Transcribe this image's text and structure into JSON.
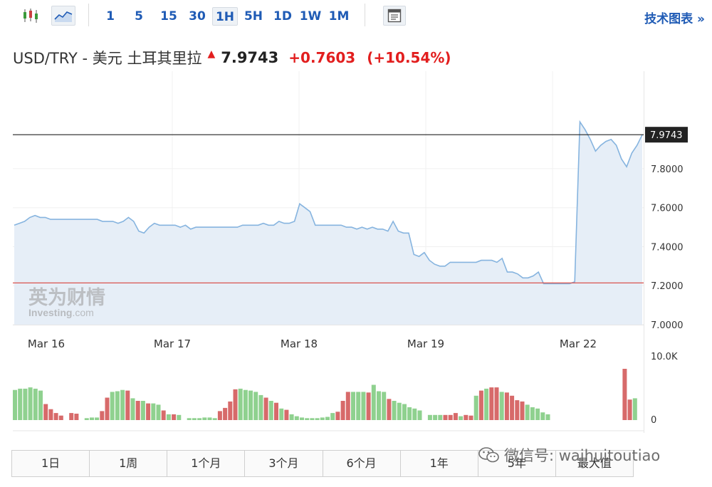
{
  "toolbar": {
    "candle_icon": "candlestick-icon",
    "line_icon": "line-chart-icon",
    "intervals": [
      "1",
      "5",
      "15",
      "30",
      "1H",
      "5H",
      "1D",
      "1W",
      "1M"
    ],
    "active_interval": "1H",
    "settings_icon": "chart-settings-icon",
    "tech_chart_label": "技术图表 »"
  },
  "header": {
    "name": "USD/TRY - 美元 土耳其里拉",
    "price": "7.9743",
    "change": "+0.7603",
    "change_pct": "(+10.54%)"
  },
  "watermark": {
    "cn": "英为财情",
    "en_a": "Investing",
    "en_b": ".com"
  },
  "colors": {
    "up_volume": "#8fd18f",
    "down_volume": "#d76a6a",
    "line": "#86b4df",
    "area": "#e6eef7",
    "ref_line": "#d9534f",
    "last_line": "#222222"
  },
  "chart_data": {
    "type": "area",
    "y_axis": {
      "ylim": [
        7.0,
        8.3
      ],
      "ticks": [
        "7.0000",
        "7.2000",
        "7.4000",
        "7.6000",
        "7.8000"
      ]
    },
    "x_labels": [
      "Mar 16",
      "Mar 17",
      "Mar 18",
      "Mar 19",
      "Mar 22"
    ],
    "last_value_label": "7.9743",
    "last_value": 7.9743,
    "reference_value": 7.214,
    "series": [
      {
        "values": [
          7.51,
          7.52,
          7.53,
          7.55,
          7.56,
          7.55,
          7.55,
          7.54,
          7.54,
          7.54,
          7.54,
          7.54,
          7.54,
          7.54,
          7.54,
          7.54,
          7.54,
          7.53,
          7.53,
          7.53,
          7.52,
          7.53,
          7.55,
          7.53,
          7.48,
          7.47,
          7.5,
          7.52,
          7.51,
          7.51,
          7.51,
          7.51,
          7.5,
          7.51,
          7.49,
          7.5,
          7.5,
          7.5,
          7.5,
          7.5,
          7.5,
          7.5,
          7.5,
          7.5,
          7.51,
          7.51,
          7.51,
          7.51,
          7.52,
          7.51,
          7.51,
          7.53,
          7.52,
          7.52,
          7.53,
          7.62,
          7.6,
          7.58,
          7.51,
          7.51,
          7.51,
          7.51,
          7.51,
          7.51,
          7.5,
          7.5,
          7.49,
          7.5,
          7.49,
          7.5,
          7.49,
          7.49,
          7.48,
          7.53,
          7.48,
          7.47,
          7.47,
          7.36,
          7.35,
          7.37,
          7.33,
          7.31,
          7.3,
          7.3,
          7.32,
          7.32,
          7.32,
          7.32,
          7.32,
          7.32,
          7.33,
          7.33,
          7.33,
          7.32,
          7.34,
          7.27,
          7.27,
          7.26,
          7.24,
          7.24,
          7.25,
          7.27,
          7.21,
          7.21,
          7.21,
          7.21,
          7.21,
          7.21,
          7.22,
          8.04,
          8.0,
          7.95,
          7.89,
          7.92,
          7.94,
          7.95,
          7.92,
          7.85,
          7.81,
          7.88,
          7.92,
          7.974
        ]
      }
    ],
    "volume": {
      "y_ticks": [
        "0",
        "10.0K"
      ],
      "ylim": [
        0,
        10000
      ],
      "values": [
        4700,
        4900,
        4900,
        5100,
        4900,
        4600,
        2500,
        1700,
        1100,
        700,
        0,
        1100,
        1000,
        0,
        300,
        400,
        400,
        1400,
        3500,
        4400,
        4500,
        4700,
        4600,
        3400,
        3000,
        3000,
        2600,
        2600,
        2400,
        1500,
        900,
        900,
        800,
        0,
        300,
        300,
        300,
        400,
        400,
        300,
        1400,
        1900,
        2900,
        4800,
        4900,
        4700,
        4600,
        4400,
        3900,
        3500,
        3000,
        2700,
        1800,
        1600,
        900,
        600,
        400,
        300,
        300,
        300,
        400,
        500,
        1100,
        1300,
        3000,
        4400,
        4400,
        4400,
        4400,
        4300,
        5500,
        4500,
        4400,
        3300,
        3000,
        2700,
        2500,
        2000,
        1800,
        1500,
        0,
        800,
        800,
        800,
        800,
        800,
        1100,
        600,
        800,
        700,
        3800,
        4600,
        4900,
        5100,
        5100,
        4400,
        4300,
        3800,
        3100,
        2900,
        2400,
        2000,
        1800,
        1200,
        900,
        0,
        0,
        0,
        0,
        0,
        0,
        0,
        0,
        0,
        0,
        0,
        0,
        0,
        0,
        8000,
        3200,
        3400
      ],
      "directions": [
        "u",
        "u",
        "u",
        "u",
        "u",
        "u",
        "d",
        "d",
        "d",
        "d",
        "d",
        "d",
        "d",
        "d",
        "u",
        "u",
        "u",
        "d",
        "d",
        "u",
        "u",
        "u",
        "d",
        "u",
        "d",
        "u",
        "d",
        "u",
        "u",
        "d",
        "u",
        "d",
        "u",
        "u",
        "u",
        "u",
        "u",
        "u",
        "u",
        "u",
        "d",
        "d",
        "d",
        "d",
        "u",
        "u",
        "u",
        "u",
        "u",
        "d",
        "u",
        "d",
        "u",
        "d",
        "u",
        "u",
        "u",
        "u",
        "u",
        "u",
        "u",
        "u",
        "u",
        "d",
        "d",
        "d",
        "u",
        "u",
        "u",
        "d",
        "u",
        "u",
        "u",
        "d",
        "u",
        "u",
        "u",
        "u",
        "u",
        "u",
        "u",
        "u",
        "u",
        "u",
        "d",
        "d",
        "d",
        "u",
        "d",
        "d",
        "u",
        "d",
        "u",
        "d",
        "d",
        "u",
        "d",
        "d",
        "d",
        "d",
        "u",
        "u",
        "u",
        "u",
        "u",
        "u",
        "u",
        "u",
        "u",
        "u",
        "u",
        "u",
        "u",
        "u",
        "u",
        "u",
        "u",
        "u",
        "u",
        "d",
        "d",
        "u"
      ]
    }
  },
  "ranges": [
    "1日",
    "1周",
    "1个月",
    "3个月",
    "6个月",
    "1年",
    "5年",
    "最大值"
  ],
  "wechat": {
    "icon": "wechat-icon",
    "text": "微信号: waihuitoutiao"
  }
}
